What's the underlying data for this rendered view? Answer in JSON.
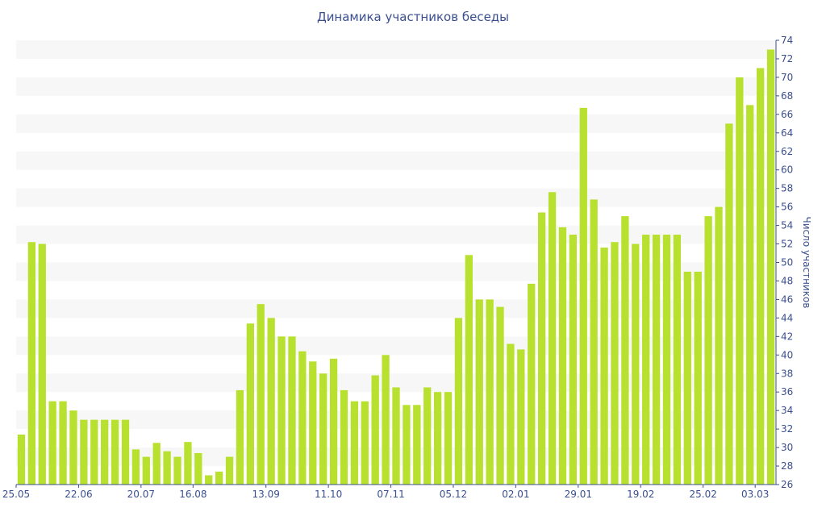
{
  "chart_data": {
    "type": "bar",
    "title": "Динамика участников беседы",
    "xlabel": "",
    "ylabel": "Число участников",
    "ylim": [
      26,
      74
    ],
    "y_ticks": [
      26,
      28,
      30,
      32,
      34,
      36,
      38,
      40,
      42,
      44,
      46,
      48,
      50,
      52,
      54,
      56,
      58,
      60,
      62,
      64,
      66,
      68,
      70,
      72,
      74
    ],
    "y_axis_position": "right",
    "grid": "alternating-bands",
    "bar_color": "#b8e02e",
    "band_color": "#f7f7f7",
    "text_color": "#3a4f8f",
    "x_tick_labels": [
      {
        "index": 0,
        "label": "25.05"
      },
      {
        "index": 6,
        "label": "22.06"
      },
      {
        "index": 12,
        "label": "20.07"
      },
      {
        "index": 17,
        "label": "16.08"
      },
      {
        "index": 24,
        "label": "13.09"
      },
      {
        "index": 30,
        "label": "11.10"
      },
      {
        "index": 36,
        "label": "07.11"
      },
      {
        "index": 42,
        "label": "05.12"
      },
      {
        "index": 48,
        "label": "02.01"
      },
      {
        "index": 54,
        "label": "29.01"
      },
      {
        "index": 60,
        "label": "19.02"
      },
      {
        "index": 66,
        "label": "25.02"
      },
      {
        "index": 71,
        "label": "03.03"
      }
    ],
    "values": [
      31.4,
      52.2,
      52.0,
      35.0,
      35.0,
      34.0,
      33.0,
      33.0,
      33.0,
      33.0,
      33.0,
      29.8,
      29.0,
      30.5,
      29.6,
      29.0,
      30.6,
      29.4,
      27.0,
      27.4,
      29.0,
      36.2,
      43.4,
      45.5,
      44.0,
      42.0,
      42.0,
      40.4,
      39.3,
      38.0,
      39.6,
      36.2,
      35.0,
      35.0,
      37.8,
      40.0,
      36.5,
      34.6,
      34.6,
      36.5,
      36.0,
      36.0,
      44.0,
      50.8,
      46.0,
      46.0,
      45.2,
      41.2,
      40.6,
      47.7,
      55.4,
      57.6,
      53.8,
      53.0,
      66.7,
      56.8,
      51.6,
      52.2,
      55.0,
      52.0,
      53.0,
      53.0,
      53.0,
      53.0,
      49.0,
      49.0,
      55.0,
      56.0,
      65.0,
      70.0,
      67.0,
      71.0,
      73.0
    ]
  }
}
